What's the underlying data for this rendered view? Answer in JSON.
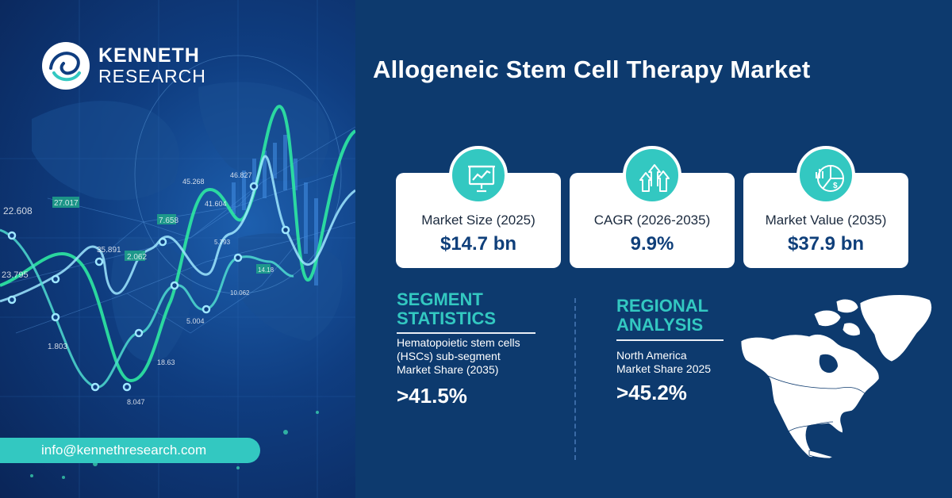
{
  "brand": {
    "line1": "KENNETH",
    "line2": "RESEARCH",
    "email": "info@kennethresearch.com"
  },
  "bg_numbers": [
    "22.608",
    "27.017",
    "23.795",
    "35.891",
    "2.062",
    "7.658",
    "1.803",
    "5.004",
    "8.047",
    "18.63",
    "45.268",
    "41.604",
    "46.827",
    "5.793",
    "10.062",
    "14.18"
  ],
  "title": "Allogeneic Stem Cell Therapy Market",
  "cards": [
    {
      "icon": "presentation-chart-icon",
      "label": "Market Size (2025)",
      "value": "$14.7 bn"
    },
    {
      "icon": "growth-arrows-icon",
      "label": "CAGR (2026-2035)",
      "value": "9.9%"
    },
    {
      "icon": "pie-dollar-icon",
      "label": "Market Value  (2035)",
      "value": "$37.9 bn"
    }
  ],
  "segment": {
    "heading_line1": "SEGMENT",
    "heading_line2": "STATISTICS",
    "desc_line1": "Hematopoietic stem cells",
    "desc_line2": "(HSCs) sub-segment",
    "desc_line3": "Market Share (2035)",
    "value": ">41.5%"
  },
  "regional": {
    "heading_line1": "REGIONAL",
    "heading_line2": "ANALYSIS",
    "desc_line1": "North America",
    "desc_line2": "Market Share 2025",
    "value": ">45.2%"
  },
  "colors": {
    "accent": "#33c8c1",
    "navy": "#0d3a6e",
    "value_text": "#0f3f7a"
  }
}
